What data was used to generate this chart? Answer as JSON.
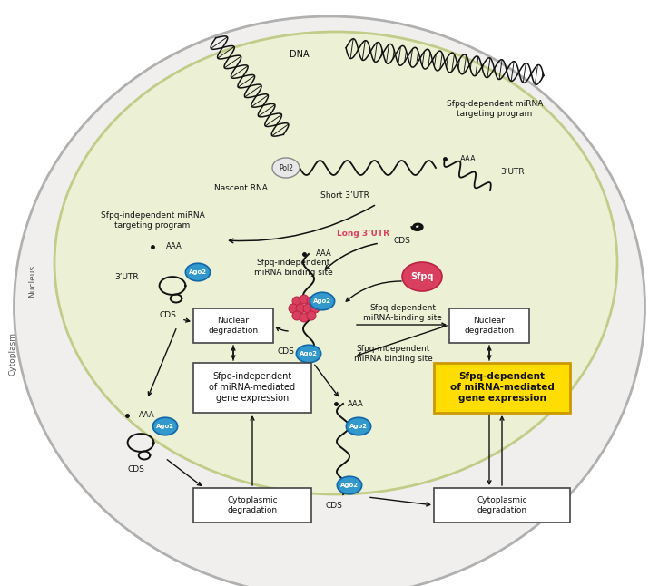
{
  "bg_color": "#ffffff",
  "cell_fc": "#f0f0ee",
  "nucleus_fc": "#eef2d8",
  "nucleus_ec": "#c8d090",
  "cell_ec": "#bbbbbb",
  "red_color": "#d94060",
  "red_dark": "#bb2244",
  "blue_color": "#3399cc",
  "blue_dark": "#1166aa",
  "yellow_bg": "#ffdd00",
  "yellow_ec": "#cc9900",
  "arrow_color": "#222222",
  "box_bg": "#ffffff",
  "box_ec": "#444444",
  "text_color": "#222222",
  "labels": {
    "cytoplasm": "Cytoplasm",
    "nucleus": "Nucleus",
    "dna": "DNA",
    "nascent_rna": "Nascent RNA",
    "sfpq_dep_mirna": "Sfpq-dependent miRNA\ntargeting program",
    "three_utr_r": "3’UTR",
    "cds": "CDS",
    "sfpq": "Sfpq",
    "short_3utr": "Short 3’UTR",
    "long_3utr": "Long 3’UTR",
    "sfpq_ind_mirna_prog": "Sfpq-independent miRNA\ntargeting program",
    "sfpq_ind_binding": "Sfpq-independent\nmiRNA binding site",
    "sfpq_dep_binding": "Sfpq-dependent\nmiRNA-binding site",
    "sfpq_ind_binding2": "Sfpq-independent\nmiRNA binding site",
    "nuclear_deg1": "Nuclear\ndegradation",
    "nuclear_deg2": "Nuclear\ndegradation",
    "sfpq_ind_box": "Sfpq-independent\nof miRNA-mediated\ngene expression",
    "sfpq_dep_box": "Sfpq-dependent\nof miRNA-mediated\ngene expression",
    "cyto_deg1": "Cytoplasmic\ndegradation",
    "cyto_deg2": "Cytoplasmic\ndegradation",
    "ago2": "Ago2",
    "pol2": "Pol2",
    "aaa": "AAA",
    "three_utr": "3’UTR"
  }
}
